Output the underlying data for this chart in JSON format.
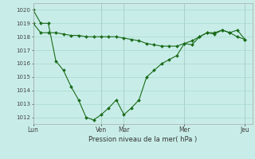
{
  "background_color": "#c8ede8",
  "grid_color": "#a8d8cc",
  "line_color": "#1a6b1a",
  "marker_color": "#1a6b1a",
  "xlabel": "Pression niveau de la mer( hPa )",
  "ylim": [
    1011.5,
    1020.5
  ],
  "yticks": [
    1012,
    1013,
    1014,
    1015,
    1016,
    1017,
    1018,
    1019,
    1020
  ],
  "xtick_labels": [
    "Lun",
    "Ven",
    "Mar",
    "Mer",
    "Jeu"
  ],
  "xtick_positions": [
    0,
    9,
    12,
    20,
    28
  ],
  "xlim": [
    0,
    29
  ],
  "line1_x": [
    0,
    1,
    2,
    3,
    4,
    5,
    6,
    7,
    8,
    9,
    10,
    11,
    12,
    13,
    14,
    15,
    16,
    17,
    18,
    19,
    20,
    21,
    22,
    23,
    24,
    25,
    26,
    27,
    28
  ],
  "line1_y": [
    1020.0,
    1019.0,
    1019.0,
    1016.2,
    1015.5,
    1014.3,
    1013.3,
    1012.0,
    1011.8,
    1012.2,
    1012.7,
    1013.3,
    1012.2,
    1012.7,
    1013.3,
    1015.0,
    1015.5,
    1016.0,
    1016.3,
    1016.6,
    1017.5,
    1017.4,
    1018.0,
    1018.3,
    1018.2,
    1018.5,
    1018.3,
    1018.5,
    1017.8
  ],
  "line2_x": [
    0,
    1,
    2,
    3,
    4,
    5,
    6,
    7,
    8,
    9,
    10,
    11,
    12,
    13,
    14,
    15,
    16,
    17,
    18,
    19,
    20,
    21,
    22,
    23,
    24,
    25,
    26,
    27,
    28
  ],
  "line2_y": [
    1019.0,
    1018.3,
    1018.3,
    1018.3,
    1018.2,
    1018.1,
    1018.1,
    1018.0,
    1018.0,
    1018.0,
    1018.0,
    1018.0,
    1017.9,
    1017.8,
    1017.7,
    1017.5,
    1017.4,
    1017.3,
    1017.3,
    1017.3,
    1017.5,
    1017.7,
    1018.0,
    1018.3,
    1018.3,
    1018.5,
    1018.3,
    1018.0,
    1017.8
  ]
}
